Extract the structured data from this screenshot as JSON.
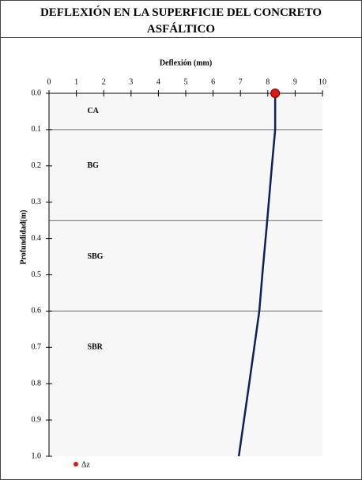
{
  "title": "DEFLEXIÓN EN LA SUPERFICIE DEL CONCRETO ASFÁLTICO",
  "chart_data": {
    "type": "line",
    "x_label": "Deflexión (mm)",
    "y_label": "Profundidad(m)",
    "xlim": [
      0,
      10
    ],
    "xticks": [
      0,
      1,
      2,
      3,
      4,
      5,
      6,
      7,
      8,
      9,
      10
    ],
    "ylim": [
      0,
      1
    ],
    "yticks": [
      {
        "value": 0,
        "label": "0.0"
      },
      0.1,
      0.2,
      0.3,
      0.4,
      0.5,
      0.6,
      0.7,
      0.8,
      0.9,
      {
        "value": 1,
        "label": "1.0"
      }
    ],
    "y_reversed": true,
    "layers": {
      "names": [
        "CA",
        "BG",
        "SBG",
        "SBR"
      ],
      "boundaries": [
        0.1,
        0.35,
        0.6
      ],
      "color": "#888888"
    },
    "series": [
      {
        "color": "#0d1f5c",
        "x": [
          8.27,
          8.27,
          8.15,
          7.98,
          7.8,
          7.69,
          7.32,
          6.94
        ],
        "y": [
          0,
          0.1,
          0.2,
          0.35,
          0.5,
          0.6,
          0.8,
          1.0
        ]
      },
      {
        "name": "Δz",
        "color": "#e8150e",
        "x": [
          8.27
        ],
        "y": [
          0
        ]
      }
    ]
  }
}
